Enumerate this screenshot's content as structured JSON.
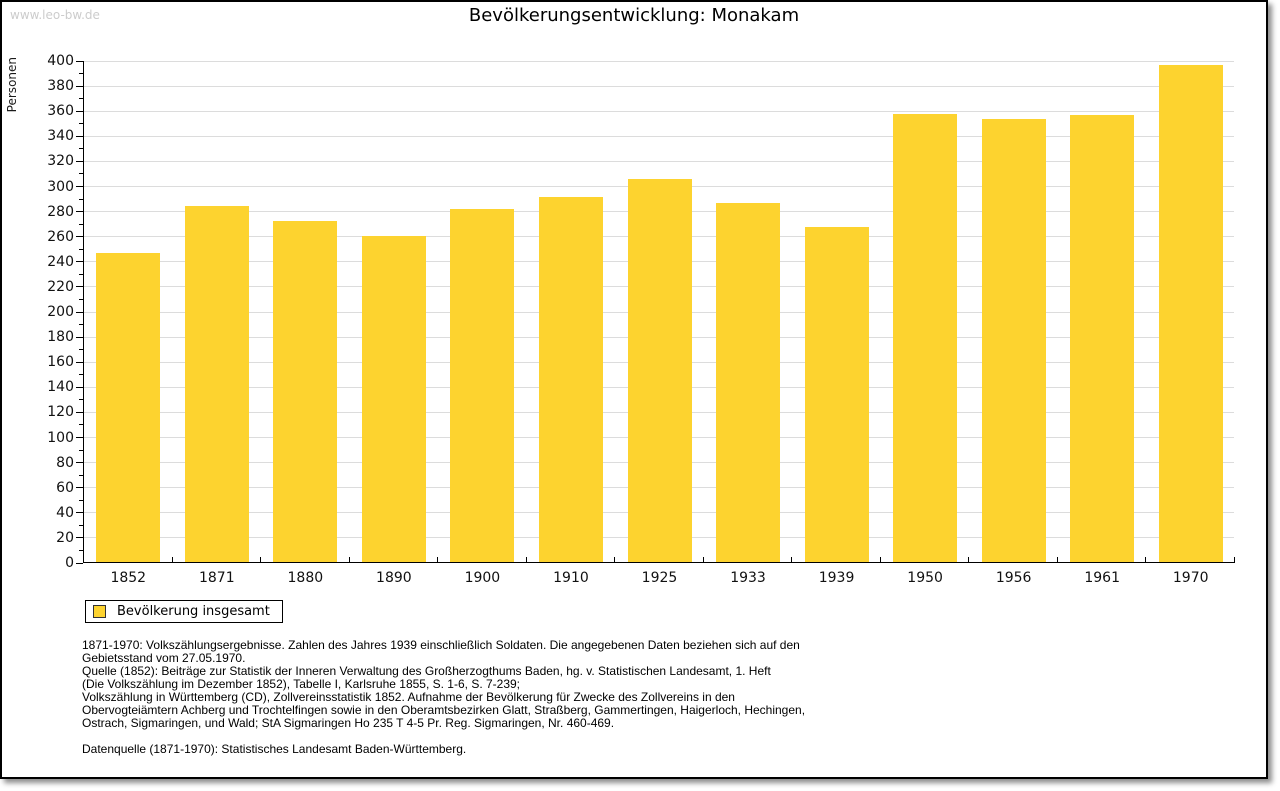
{
  "page": {
    "watermark": "www.leo-bw.de",
    "background": "#ffffff",
    "frame_border_color": "#000000"
  },
  "chart_data": {
    "type": "bar",
    "title": "Bevölkerungsentwicklung: Monakam",
    "ylabel": "Personen",
    "xlabel": "",
    "categories": [
      "1852",
      "1871",
      "1880",
      "1890",
      "1900",
      "1910",
      "1925",
      "1933",
      "1939",
      "1950",
      "1956",
      "1961",
      "1970"
    ],
    "values": [
      246,
      284,
      272,
      260,
      281,
      291,
      305,
      286,
      267,
      357,
      353,
      356,
      396
    ],
    "series_name": "Bevölkerung insgesamt",
    "ylim": [
      0,
      400
    ],
    "ytick_step": 20,
    "yminor_step": 10,
    "grid": "horizontal-major",
    "legend_position": "bottom-left",
    "bar_color": "#FDD32F",
    "grid_color": "#DCDCDC",
    "axis_color": "#000000"
  },
  "legend": {
    "label": "Bevölkerung insgesamt",
    "swatch_color": "#FDD32F"
  },
  "footer": {
    "lines": [
      "1871-1970: Volkszählungsergebnisse. Zahlen des Jahres 1939 einschließlich Soldaten. Die angegebenen Daten beziehen sich auf den",
      "Gebietsstand vom 27.05.1970.",
      "Quelle (1852): Beiträge zur Statistik der Inneren Verwaltung des Großherzogthums Baden, hg. v. Statistischen Landesamt, 1. Heft",
      "(Die Volkszählung im Dezember 1852), Tabelle I, Karlsruhe 1855, S. 1-6, S. 7-239;",
      "Volkszählung in Württemberg (CD), Zollvereinsstatistik 1852. Aufnahme der Bevölkerung für Zwecke des Zollvereins in den",
      "Obervogteiämtern Achberg und Trochtelfingen sowie in den Oberamtsbezirken Glatt, Straßberg, Gammertingen, Haigerloch, Hechingen,",
      "Ostrach, Sigmaringen, und Wald; StA Sigmaringen Ho 235 T 4-5 Pr. Reg. Sigmaringen, Nr. 460-469.",
      "",
      "Datenquelle (1871-1970): Statistisches Landesamt Baden-Württemberg."
    ]
  }
}
